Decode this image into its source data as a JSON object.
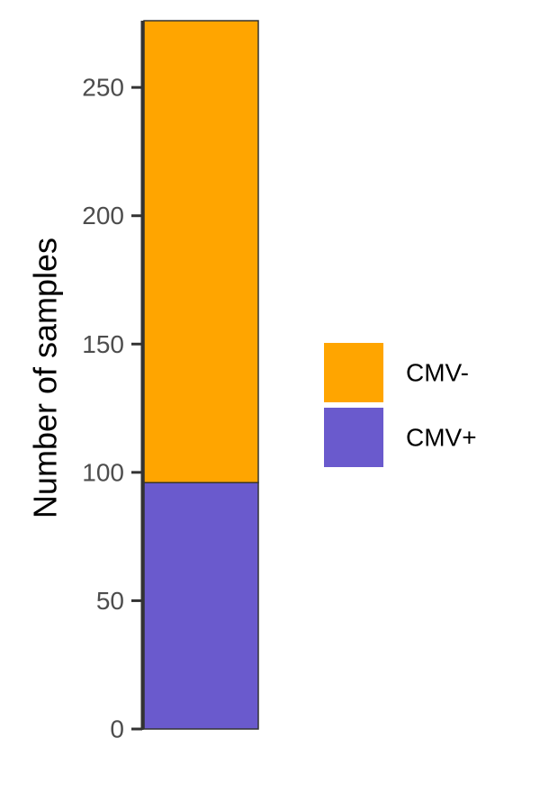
{
  "chart_data": {
    "type": "bar",
    "stacked": true,
    "categories": [
      ""
    ],
    "series": [
      {
        "name": "CMV+",
        "values": [
          96
        ]
      },
      {
        "name": "CMV-",
        "values": [
          180
        ]
      }
    ],
    "title": "",
    "xlabel": "",
    "ylabel": "Number of samples",
    "ylim": [
      0,
      276
    ],
    "yticks": [
      0,
      50,
      100,
      150,
      200,
      250
    ],
    "grid": false,
    "legend_position": "right",
    "legend_order": [
      "CMV-",
      "CMV+"
    ],
    "colors": {
      "CMV+": "#6a5acd",
      "CMV-": "#ffa500",
      "bar_outline": "#333333",
      "axis_line": "#333333"
    }
  }
}
